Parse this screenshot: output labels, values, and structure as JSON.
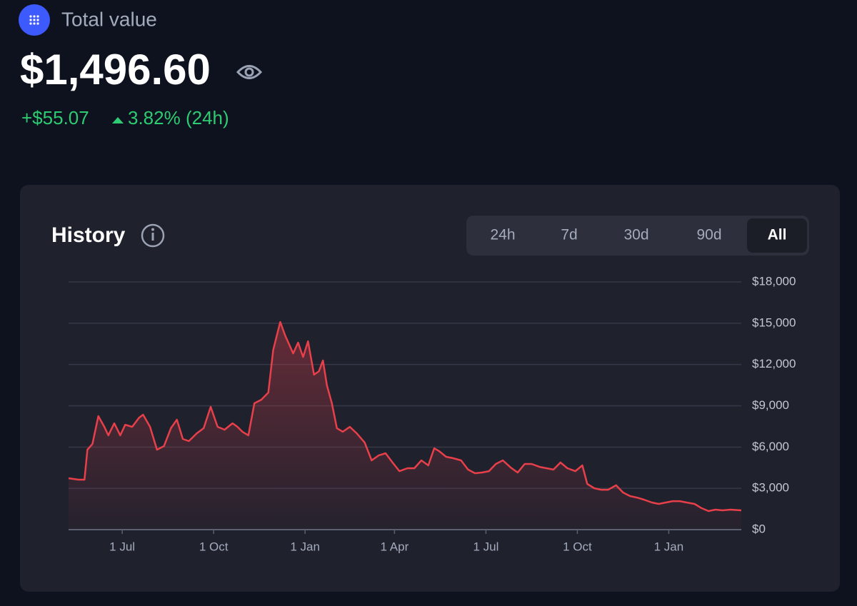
{
  "header": {
    "title": "Total value",
    "value": "$1,496.60",
    "change": "+$55.07",
    "change_percent": "3.82% (24h)"
  },
  "card": {
    "title": "History",
    "tabs": [
      "24h",
      "7d",
      "30d",
      "90d",
      "All"
    ],
    "selected_tab": "All"
  },
  "chart_data": {
    "type": "line",
    "color": "#e8404a",
    "grid": true,
    "x": [
      0,
      10,
      16,
      19,
      24,
      30,
      36,
      40,
      46,
      52,
      57,
      64,
      71,
      75,
      82,
      89,
      96,
      103,
      109,
      115,
      121,
      129,
      136,
      143,
      150,
      157,
      165,
      170,
      175,
      181,
      187,
      194,
      201,
      206,
      213,
      218,
      226,
      231,
      236,
      241,
      247,
      252,
      256,
      260,
      265,
      270,
      276,
      283,
      290,
      298,
      305,
      312,
      319,
      326,
      333,
      341,
      348,
      355,
      362,
      368,
      373,
      380,
      387,
      395,
      402,
      409,
      416,
      423,
      430,
      437,
      445,
      452,
      459,
      466,
      474,
      481,
      488,
      495,
      502,
      510,
      517,
      522,
      529,
      536,
      543,
      551,
      558,
      565,
      572,
      579,
      587,
      594,
      601,
      608,
      615,
      622,
      630,
      637,
      644,
      651,
      658,
      666,
      677
    ],
    "values": [
      3735,
      3630,
      3630,
      5810,
      6220,
      8250,
      7470,
      6850,
      7730,
      6850,
      7620,
      7470,
      8140,
      8350,
      7470,
      5810,
      6070,
      7370,
      7990,
      6590,
      6430,
      7000,
      7370,
      8920,
      7470,
      7260,
      7730,
      7470,
      7110,
      6850,
      9180,
      9440,
      9960,
      13070,
      15090,
      14110,
      12810,
      13590,
      12550,
      13690,
      11260,
      11510,
      12290,
      10480,
      9180,
      7370,
      7110,
      7470,
      7000,
      6330,
      5030,
      5390,
      5550,
      4880,
      4250,
      4460,
      4460,
      5030,
      4670,
      5910,
      5700,
      5290,
      5190,
      5030,
      4360,
      4100,
      4150,
      4250,
      4770,
      5030,
      4510,
      4150,
      4770,
      4770,
      4560,
      4460,
      4360,
      4880,
      4460,
      4250,
      4670,
      3320,
      3010,
      2900,
      2900,
      3220,
      2700,
      2440,
      2330,
      2180,
      1970,
      1870,
      1970,
      2070,
      2070,
      1970,
      1870,
      1560,
      1350,
      1450,
      1400,
      1450,
      1400
    ],
    "xlim": [
      0,
      677
    ],
    "xticks": [
      {
        "value": 54,
        "label": "1 Jul"
      },
      {
        "value": 146,
        "label": "1 Oct"
      },
      {
        "value": 238,
        "label": "1 Jan"
      },
      {
        "value": 328,
        "label": "1 Apr"
      },
      {
        "value": 420,
        "label": "1 Jul"
      },
      {
        "value": 512,
        "label": "1 Oct"
      },
      {
        "value": 604,
        "label": "1 Jan"
      }
    ],
    "ylim": [
      0,
      18000
    ],
    "yticks": [
      {
        "value": 0,
        "label": "$0"
      },
      {
        "value": 3000,
        "label": "$3,000"
      },
      {
        "value": 6000,
        "label": "$6,000"
      },
      {
        "value": 9000,
        "label": "$9,000"
      },
      {
        "value": 12000,
        "label": "$12,000"
      },
      {
        "value": 15000,
        "label": "$15,000"
      },
      {
        "value": 18000,
        "label": "$18,000"
      }
    ]
  }
}
